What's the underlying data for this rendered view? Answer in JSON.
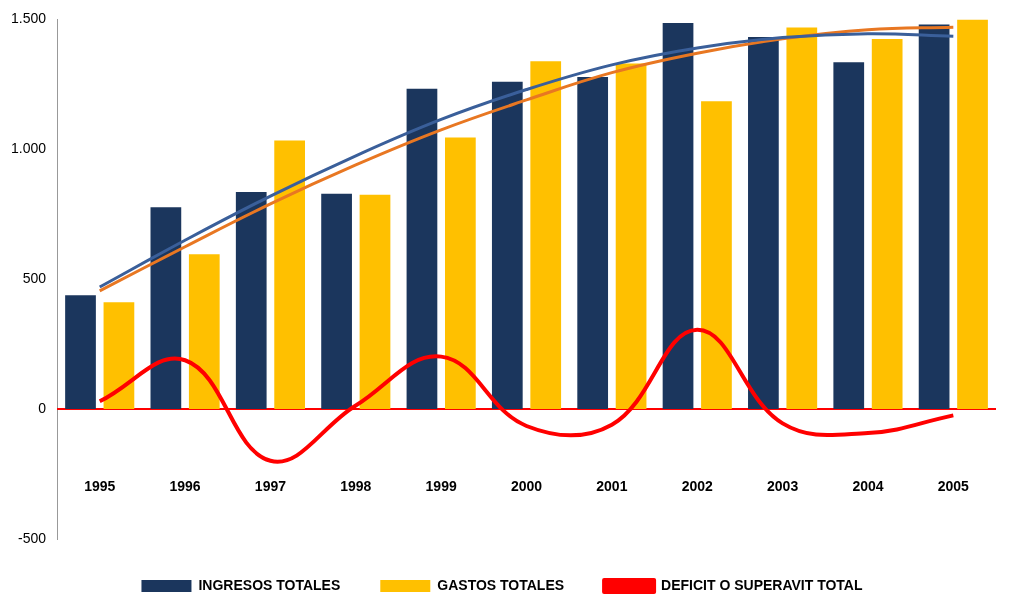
{
  "chart_data": {
    "type": "bar",
    "categories": [
      "1995",
      "1996",
      "1997",
      "1998",
      "1999",
      "2000",
      "2001",
      "2002",
      "2003",
      "2004",
      "2005"
    ],
    "series": [
      {
        "name": "INGRESOS TOTALES",
        "color": "#1b365d",
        "values": [
          438,
          777,
          836,
          829,
          1233,
          1260,
          1278,
          1486,
          1432,
          1335,
          1480
        ]
      },
      {
        "name": "GASTOS TOTALES",
        "color": "#ffc000",
        "values": [
          411,
          596,
          1034,
          825,
          1045,
          1339,
          1330,
          1185,
          1469,
          1425,
          1500
        ]
      },
      {
        "name": "DEFICIT O SUPERAVIT TOTAL",
        "type": "line",
        "color": "#ff0000",
        "values": [
          30,
          188,
          -199,
          14,
          202,
          -65,
          -60,
          305,
          -55,
          -92,
          -24
        ]
      },
      {
        "type": "line",
        "color": "#3a5f9a",
        "values": [
          470,
          650,
          820,
          975,
          1115,
          1230,
          1325,
          1390,
          1430,
          1445,
          1435
        ]
      },
      {
        "type": "line",
        "color": "#e87722",
        "values": [
          455,
          625,
          790,
          940,
          1075,
          1190,
          1295,
          1370,
          1425,
          1460,
          1470
        ]
      }
    ],
    "ylim": [
      -500,
      1500
    ],
    "yticks": [
      {
        "value": -500,
        "label": "-500"
      },
      0,
      500,
      {
        "value": 1000,
        "label": "1.000"
      },
      {
        "value": 1500,
        "label": "1.500"
      }
    ],
    "ref_lines": [
      {
        "axis": "y",
        "value": 0,
        "color": "#ff0000"
      }
    ],
    "legend": "bottom",
    "grid": false,
    "marker": "none"
  }
}
